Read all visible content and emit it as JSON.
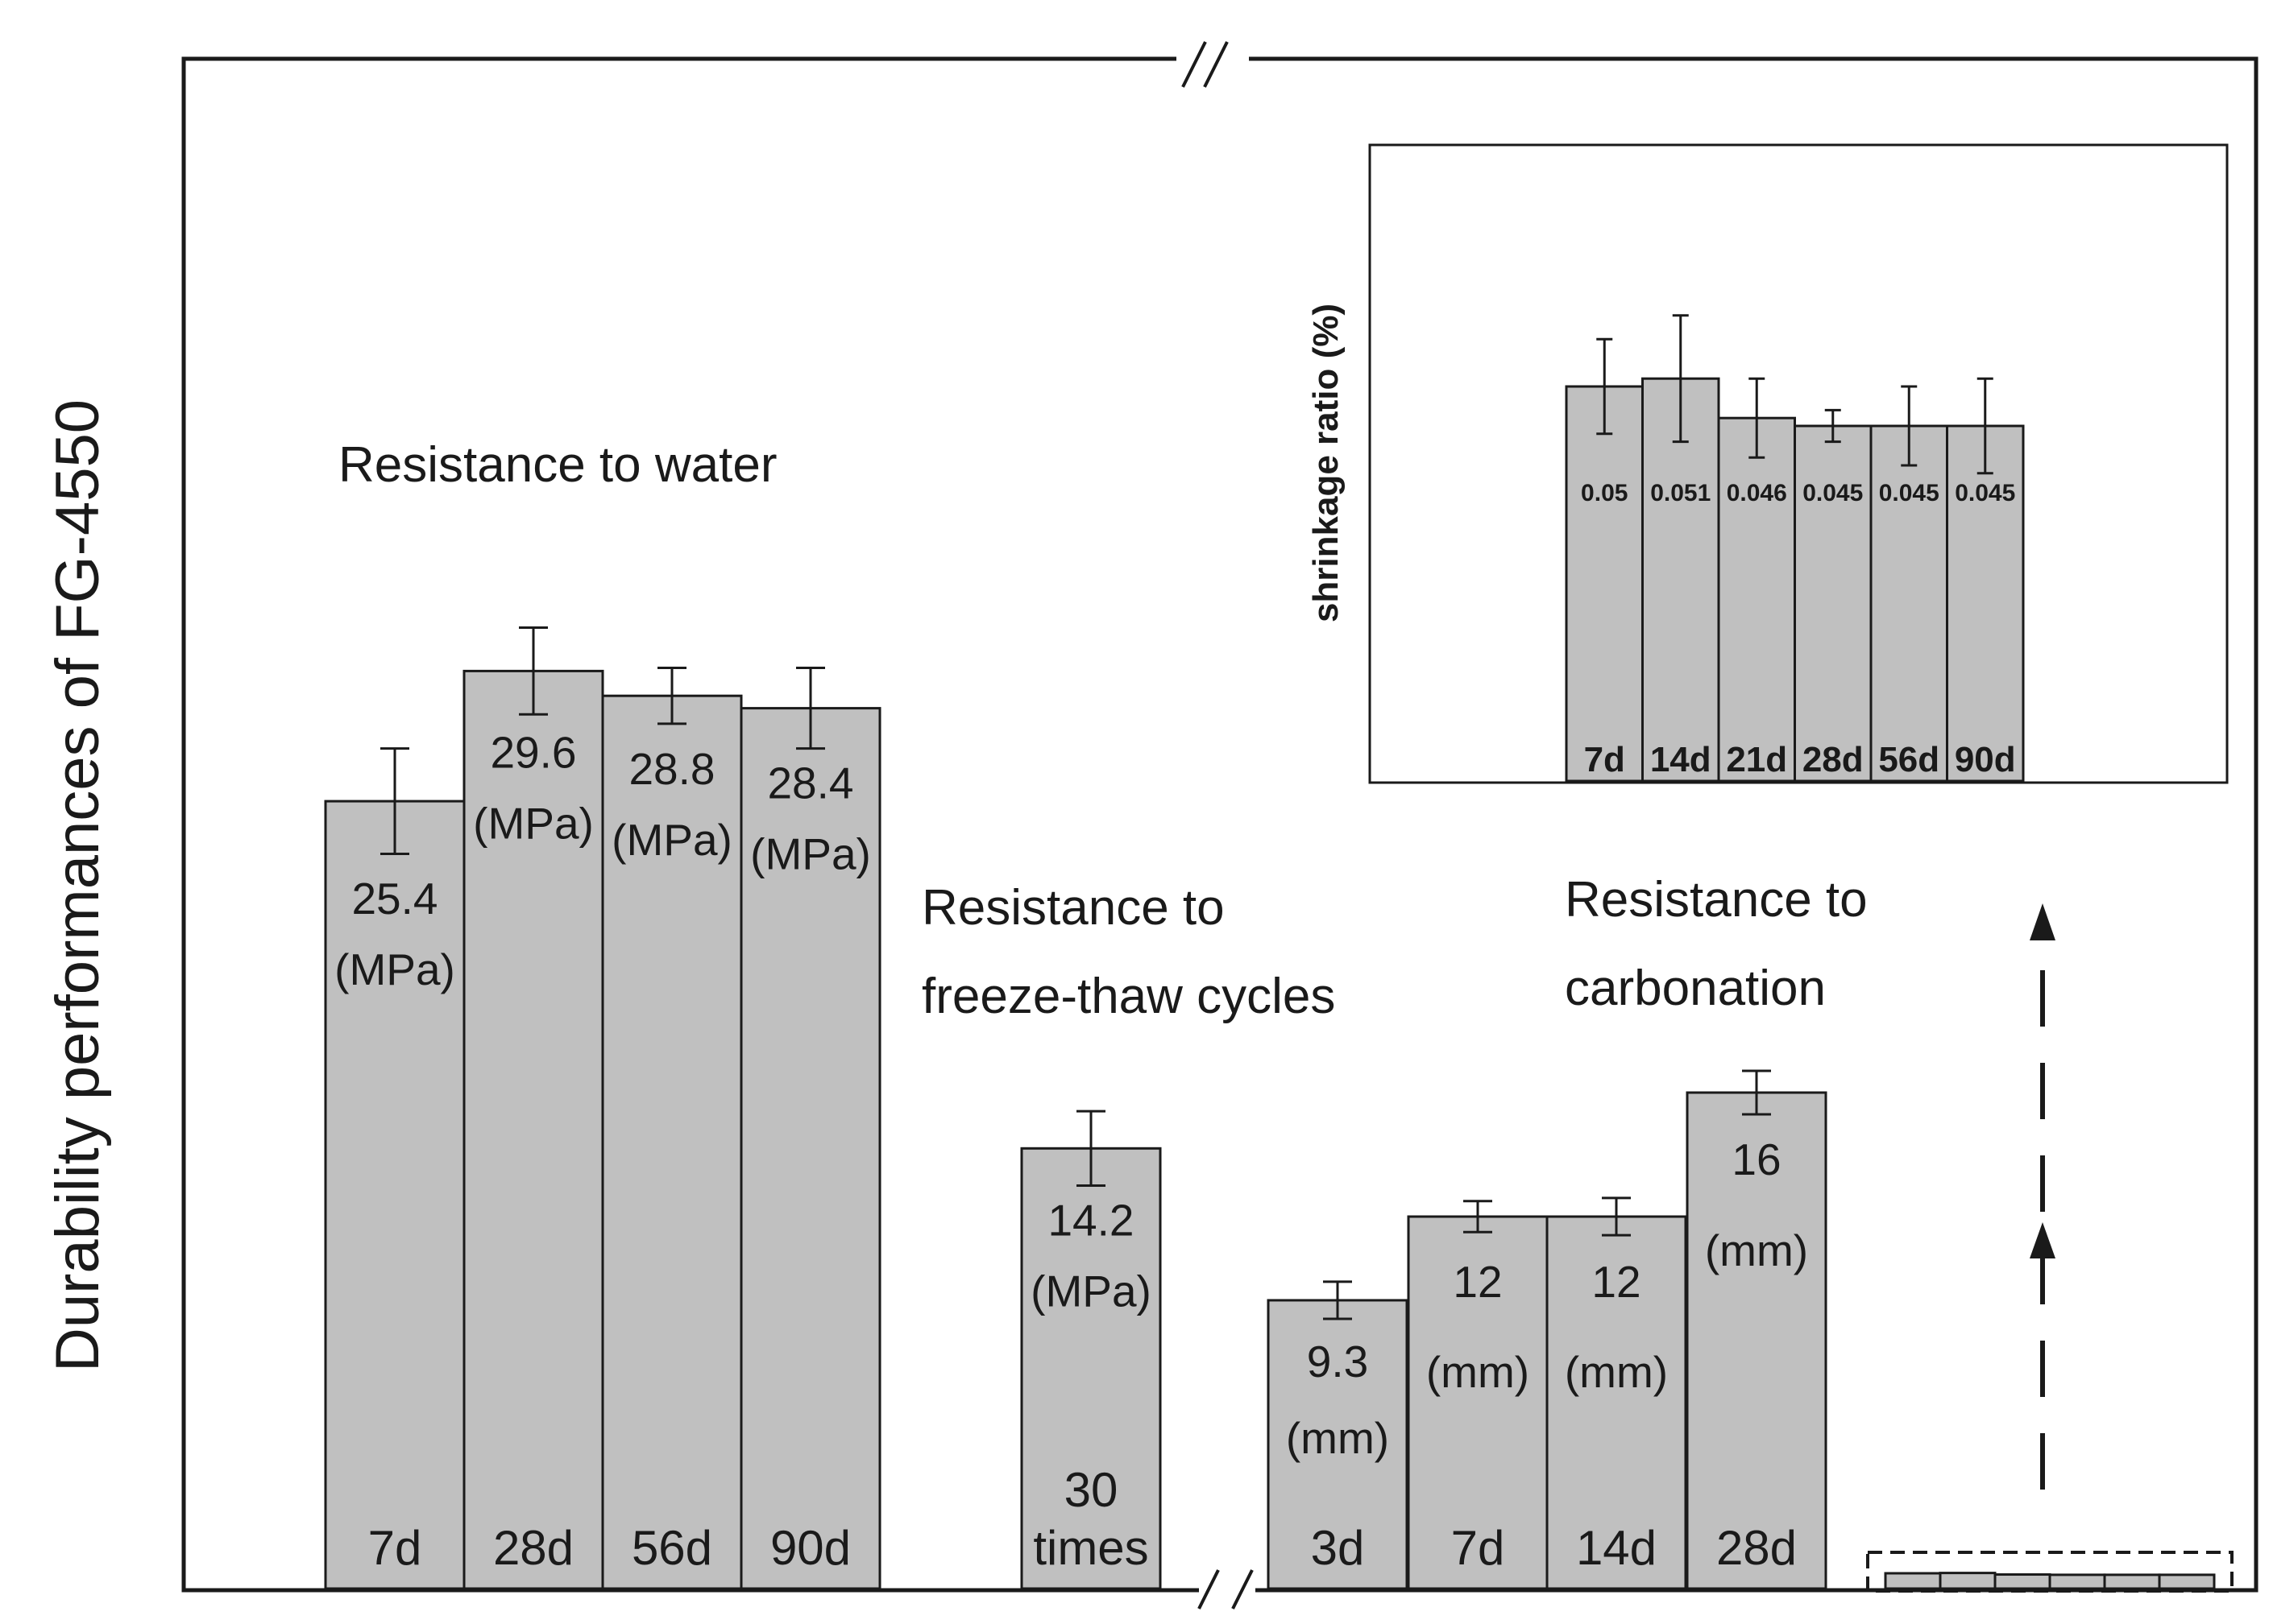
{
  "chart_data": {
    "type": "bar",
    "ylabel": "Durability performances of FG-4550",
    "groups": [
      {
        "key": "water",
        "label": [
          "Resistance to water"
        ],
        "values": [
          25.4,
          29.6,
          28.8,
          28.4
        ],
        "errors": [
          1.7,
          1.4,
          0.9,
          1.3
        ],
        "value_labels": [
          [
            "25.4",
            "(MPa)"
          ],
          [
            "29.6",
            "(MPa)"
          ],
          [
            "28.8",
            "(MPa)"
          ],
          [
            "28.4",
            "(MPa)"
          ]
        ],
        "categories": [
          [
            "7d"
          ],
          [
            "28d"
          ],
          [
            "56d"
          ],
          [
            "90d"
          ]
        ]
      },
      {
        "key": "freeze",
        "label": [
          "Resistance to",
          "freeze-thaw cycles"
        ],
        "values": [
          14.2
        ],
        "errors": [
          1.2
        ],
        "value_labels": [
          [
            "14.2",
            "(MPa)"
          ]
        ],
        "categories": [
          [
            "30",
            "times"
          ]
        ]
      },
      {
        "key": "carbonation",
        "label": [
          "Resistance to",
          "carbonation"
        ],
        "values": [
          9.3,
          12,
          12,
          16
        ],
        "errors": [
          0.6,
          0.5,
          0.6,
          0.7
        ],
        "value_labels": [
          [
            "9.3",
            "(mm)"
          ],
          [
            "12",
            "(mm)"
          ],
          [
            "12",
            "(mm)"
          ],
          [
            "16",
            "(mm)"
          ]
        ],
        "categories": [
          [
            "3d"
          ],
          [
            "7d"
          ],
          [
            "14d"
          ],
          [
            "28d"
          ]
        ]
      }
    ],
    "inset": {
      "type": "bar",
      "ylabel": "shrinkage ratio (%)",
      "categories": [
        "7d",
        "14d",
        "21d",
        "28d",
        "56d",
        "90d"
      ],
      "values": [
        0.05,
        0.051,
        0.046,
        0.045,
        0.045,
        0.045
      ],
      "errors": [
        0.006,
        0.008,
        0.005,
        0.002,
        0.005,
        0.006
      ],
      "value_labels": [
        "0.05",
        "0.051",
        "0.046",
        "0.045",
        "0.045",
        "0.045"
      ]
    }
  }
}
